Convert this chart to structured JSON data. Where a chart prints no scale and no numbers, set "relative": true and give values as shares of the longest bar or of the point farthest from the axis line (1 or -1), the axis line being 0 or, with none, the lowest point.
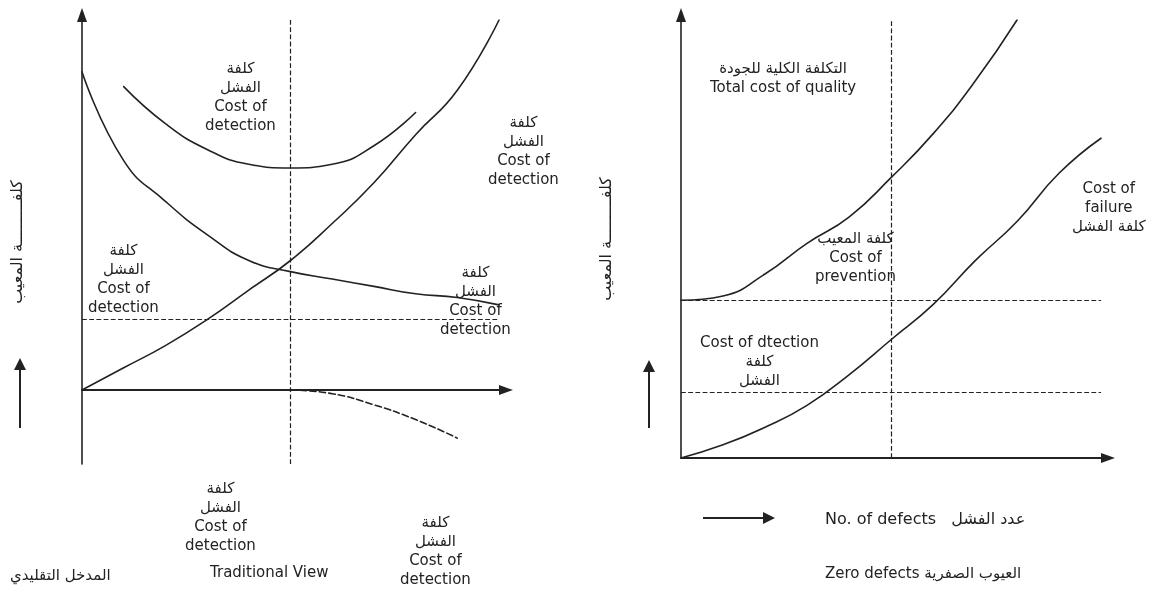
{
  "chart_data": [
    {
      "type": "line",
      "title": "Traditional View",
      "ylabel": "كلفـــــــــة المعيب",
      "relative": true,
      "grid": false,
      "marker": "none",
      "line_style": "solid",
      "categories": [
        null,
        null,
        null,
        null,
        null,
        null,
        null,
        null,
        null,
        null,
        null
      ],
      "series": [
        {
          "color": "#222222",
          "values": [
            0,
            0.06,
            0.12,
            0.19,
            0.27,
            0.35,
            0.45,
            0.56,
            0.69,
            0.81,
            1
          ]
        },
        {
          "color": "#222222",
          "values": [
            0.86,
            0.62,
            0.51,
            0.42,
            0.35,
            0.32,
            0.3,
            0.28,
            0.26,
            0.25,
            0.23
          ]
        },
        {
          "color": "#222222",
          "values": [
            null,
            0.82,
            0.72,
            0.65,
            0.61,
            0.6,
            0.61,
            0.66,
            0.75,
            null,
            null
          ]
        },
        {
          "color": "#222222",
          "line_style": "dashed",
          "values": [
            null,
            null,
            null,
            null,
            null,
            0,
            -0.01,
            -0.04,
            -0.08,
            -0.13,
            null
          ]
        }
      ],
      "ref_lines": [
        {
          "axis": "y",
          "value": 0.19,
          "color": "#222222",
          "line_style": "dashed"
        }
      ],
      "annotations": [
        "كلفة\nالفشل\nCost of\ndetection",
        "كلفة\nالفشل\nCost of\ndetection",
        "كلفة\nالفشل\nCost of\ndetection",
        "كلفة\nالفشل\nCost of\ndetection",
        "كلفة\nالفشل\nCost of\ndetection",
        "كلفة\nالفشل\nCost of\ndetection",
        "المدخل التقليدي"
      ]
    },
    {
      "type": "line",
      "title": "Zero defects العيوب الصفرية",
      "ylabel": "كلفـــــــــة المعيب",
      "xlabel": "No. of defects   عدد الفشل",
      "relative": true,
      "grid": false,
      "marker": "none",
      "line_style": "solid",
      "categories": [
        null,
        null,
        null,
        null,
        null,
        null,
        null,
        null,
        null,
        null,
        null
      ],
      "series": [
        {
          "color": "#222222",
          "values": [
            0.36,
            0.37,
            0.42,
            0.49,
            0.55,
            0.64,
            0.74,
            0.86,
            1,
            null,
            null
          ]
        },
        {
          "color": "#222222",
          "values": [
            0,
            0.03,
            0.07,
            0.12,
            0.19,
            0.27,
            0.35,
            0.45,
            0.54,
            0.65,
            0.73
          ]
        }
      ],
      "ref_lines": [
        {
          "axis": "y",
          "value": 0.36,
          "color": "#222222",
          "line_style": "dashed"
        },
        {
          "axis": "y",
          "value": 0.15,
          "color": "#222222",
          "line_style": "dashed"
        }
      ],
      "annotations": [
        "التكلفة الكلية للجودة\nTotal cost of quality",
        "كلفة المعيب\nCost of\nprevention",
        "Cost of\nfailure\nكلفة الفشل",
        "Cost of dtection\nكلفة\nالفشل"
      ]
    }
  ]
}
